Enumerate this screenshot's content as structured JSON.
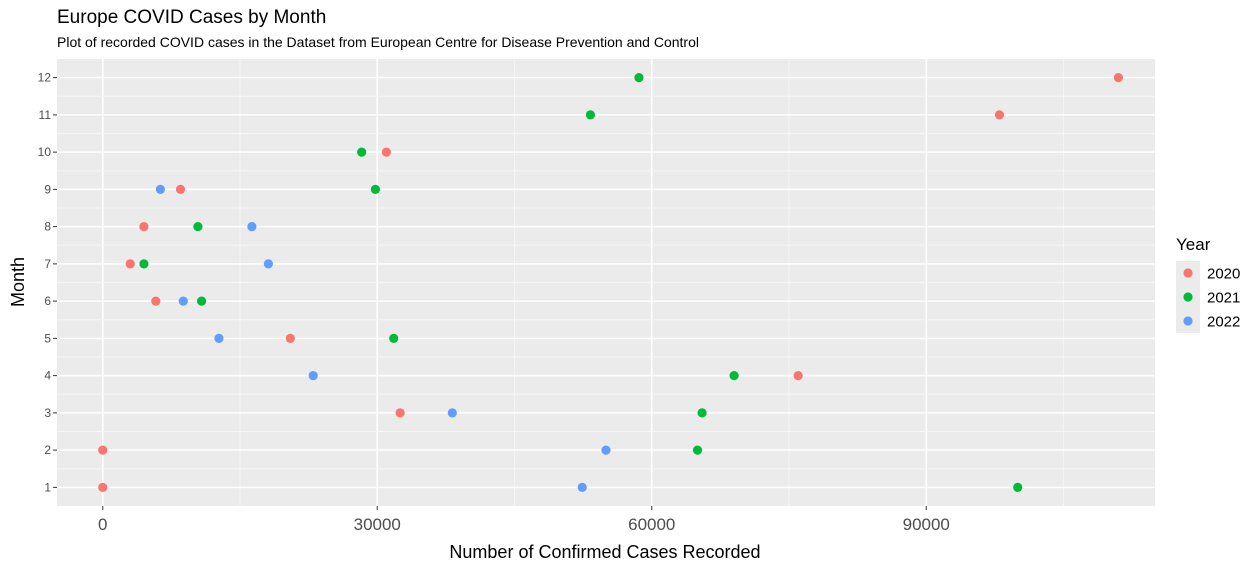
{
  "chart_data": {
    "type": "scatter",
    "title": "Europe COVID Cases by Month",
    "subtitle": "Plot of recorded COVID cases in the Dataset from European Centre for Disease Prevention and Control",
    "xlabel": "Number of Confirmed Cases Recorded",
    "ylabel": "Month",
    "xlim": [
      -5000,
      115000
    ],
    "ylim": [
      0.5,
      12.5
    ],
    "x_ticks": [
      0,
      30000,
      60000,
      90000
    ],
    "x_tick_labels": [
      "0",
      "30000",
      "60000",
      "90000"
    ],
    "y_ticks": [
      1,
      2,
      3,
      4,
      5,
      6,
      7,
      8,
      9,
      10,
      11,
      12
    ],
    "y_tick_labels": [
      "1",
      "2",
      "3",
      "4",
      "5",
      "6",
      "7",
      "8",
      "9",
      "10",
      "11",
      "12"
    ],
    "grid": true,
    "background": "#ebebeb",
    "legend": {
      "title": "Year",
      "position": "right"
    },
    "series": [
      {
        "name": "2020",
        "color": "#F8766D",
        "points": [
          {
            "x": 0,
            "y": 1
          },
          {
            "x": 0,
            "y": 2
          },
          {
            "x": 32500,
            "y": 3
          },
          {
            "x": 76000,
            "y": 4
          },
          {
            "x": 20500,
            "y": 5
          },
          {
            "x": 5800,
            "y": 6
          },
          {
            "x": 3000,
            "y": 7
          },
          {
            "x": 4500,
            "y": 8
          },
          {
            "x": 8500,
            "y": 9
          },
          {
            "x": 31000,
            "y": 10
          },
          {
            "x": 98000,
            "y": 11
          },
          {
            "x": 111000,
            "y": 12
          }
        ]
      },
      {
        "name": "2021",
        "color": "#00BA38",
        "points": [
          {
            "x": 100000,
            "y": 1
          },
          {
            "x": 65000,
            "y": 2
          },
          {
            "x": 65500,
            "y": 3
          },
          {
            "x": 69000,
            "y": 4
          },
          {
            "x": 31800,
            "y": 5
          },
          {
            "x": 10800,
            "y": 6
          },
          {
            "x": 4500,
            "y": 7
          },
          {
            "x": 10400,
            "y": 8
          },
          {
            "x": 29800,
            "y": 9
          },
          {
            "x": 28300,
            "y": 10
          },
          {
            "x": 53300,
            "y": 11
          },
          {
            "x": 58600,
            "y": 12
          }
        ]
      },
      {
        "name": "2022",
        "color": "#619CFF",
        "points": [
          {
            "x": 52400,
            "y": 1
          },
          {
            "x": 55000,
            "y": 2
          },
          {
            "x": 38200,
            "y": 3
          },
          {
            "x": 23000,
            "y": 4
          },
          {
            "x": 12700,
            "y": 5
          },
          {
            "x": 8800,
            "y": 6
          },
          {
            "x": 18100,
            "y": 7
          },
          {
            "x": 16300,
            "y": 8
          },
          {
            "x": 6300,
            "y": 9
          }
        ]
      }
    ]
  }
}
